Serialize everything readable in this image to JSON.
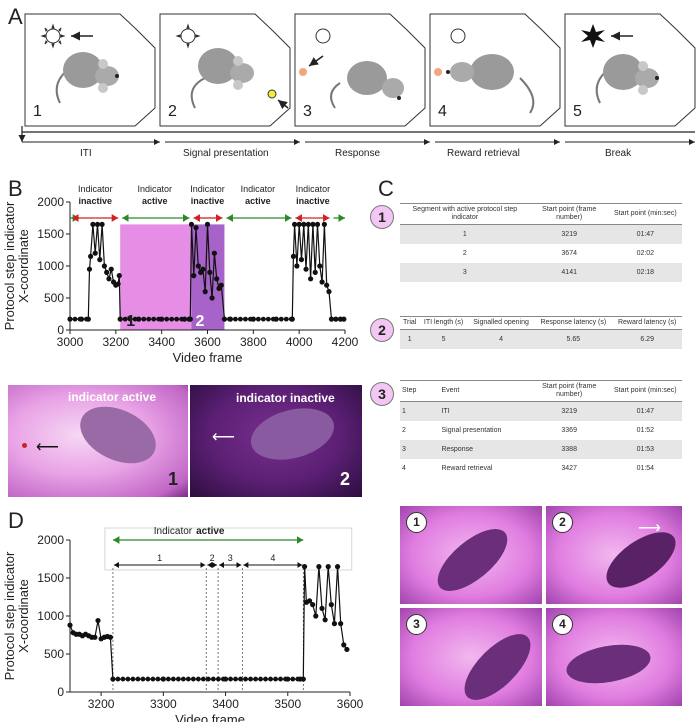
{
  "panels": {
    "A": "A",
    "B": "B",
    "C": "C",
    "D": "D"
  },
  "panel_a": {
    "step_numbers": [
      "1",
      "2",
      "3",
      "4",
      "5"
    ],
    "timeline_labels": [
      "ITI",
      "Signal presentation",
      "Response",
      "Reward retrieval",
      "Break"
    ]
  },
  "panel_b": {
    "indicator_states": [
      {
        "name": "Indicator",
        "state": "inactive"
      },
      {
        "name": "Indicator",
        "state": "active"
      },
      {
        "name": "Indicator",
        "state": "inactive"
      },
      {
        "name": "Indicator",
        "state": "active"
      },
      {
        "name": "Indicator",
        "state": "inactive"
      }
    ],
    "region_labels": [
      "1",
      "2"
    ],
    "photo_left_caption": "indicator active",
    "photo_left_number": "1",
    "photo_right_caption": "indicator inactive",
    "photo_right_number": "2"
  },
  "panel_c": {
    "table1": {
      "badge": "1",
      "headers": [
        "Segment with active protocol step indicator",
        "Start point (frame number)",
        "Start point (min:sec)"
      ],
      "rows": [
        [
          "1",
          "3219",
          "01:47"
        ],
        [
          "2",
          "3674",
          "02:02"
        ],
        [
          "3",
          "4141",
          "02:18"
        ]
      ]
    },
    "table2": {
      "badge": "2",
      "headers": [
        "Trial",
        "ITI length (s)",
        "Signalled opening",
        "Response latency (s)",
        "Reward latency (s)"
      ],
      "rows": [
        [
          "1",
          "5",
          "4",
          "5.65",
          "6.29"
        ]
      ]
    },
    "table3": {
      "badge": "3",
      "headers": [
        "Step",
        "Event",
        "Start point (frame number)",
        "Start point (min:sec)"
      ],
      "rows": [
        [
          "1",
          "ITI",
          "3219",
          "01:47"
        ],
        [
          "2",
          "Signal presentation",
          "3369",
          "01:52"
        ],
        [
          "3",
          "Response",
          "3388",
          "01:53"
        ],
        [
          "4",
          "Reward retrieval",
          "3427",
          "01:54"
        ]
      ]
    },
    "photo_numbers": [
      "1",
      "2",
      "3",
      "4"
    ]
  },
  "panel_d": {
    "indicator_label": "Indicator",
    "indicator_state": "active",
    "segment_labels": [
      "1",
      "2",
      "3",
      "4"
    ]
  },
  "chart_data": [
    {
      "id": "B",
      "type": "line",
      "xlabel": "Video frame",
      "ylabel": "Protocol step indicator X-coordinate",
      "xlim": [
        3000,
        4200
      ],
      "ylim": [
        0,
        2000
      ],
      "xticks": [
        3000,
        3200,
        3400,
        3600,
        3800,
        4000,
        4200
      ],
      "yticks": [
        0,
        500,
        1000,
        1500,
        2000
      ],
      "highlight_regions": [
        {
          "label": "1",
          "x": [
            3219,
            3530
          ],
          "color": "#e68de6"
        },
        {
          "label": "2",
          "x": [
            3530,
            3674
          ],
          "color": "#a763c9"
        }
      ],
      "series": [
        {
          "name": "x-coordinate",
          "x": [
            3000,
            3050,
            3080,
            3085,
            3090,
            3100,
            3110,
            3120,
            3130,
            3140,
            3150,
            3160,
            3170,
            3180,
            3190,
            3200,
            3210,
            3215,
            3219,
            3300,
            3400,
            3500,
            3520,
            3525,
            3530,
            3540,
            3550,
            3560,
            3570,
            3580,
            3590,
            3600,
            3610,
            3620,
            3630,
            3640,
            3650,
            3660,
            3674,
            3700,
            3800,
            3900,
            3970,
            3975,
            3980,
            3990,
            4000,
            4010,
            4020,
            4030,
            4040,
            4050,
            4060,
            4070,
            4080,
            4090,
            4100,
            4110,
            4120,
            4130,
            4141,
            4160,
            4180,
            4195
          ],
          "y": [
            170,
            170,
            170,
            950,
            1150,
            1650,
            1200,
            1650,
            1100,
            1650,
            1000,
            900,
            800,
            950,
            750,
            700,
            720,
            850,
            170,
            170,
            170,
            170,
            170,
            170,
            1650,
            850,
            1600,
            1000,
            900,
            950,
            600,
            1650,
            900,
            500,
            1200,
            800,
            650,
            700,
            170,
            170,
            170,
            170,
            170,
            1150,
            1650,
            1000,
            1650,
            1100,
            1650,
            950,
            1650,
            800,
            1650,
            900,
            1650,
            1000,
            750,
            1650,
            700,
            600,
            170,
            170,
            170,
            170
          ]
        }
      ]
    },
    {
      "id": "D",
      "type": "line",
      "xlabel": "Video frame",
      "ylabel": "Protocol step indicator X-coordinate",
      "xlim": [
        3150,
        3600
      ],
      "ylim": [
        0,
        2000
      ],
      "xticks": [
        3200,
        3300,
        3400,
        3500,
        3600
      ],
      "yticks": [
        0,
        500,
        1000,
        1500,
        2000
      ],
      "step_boundaries": [
        3219,
        3369,
        3388,
        3427,
        3525
      ],
      "series": [
        {
          "name": "x-coordinate",
          "x": [
            3150,
            3155,
            3160,
            3165,
            3170,
            3175,
            3180,
            3185,
            3190,
            3195,
            3200,
            3205,
            3210,
            3215,
            3219,
            3300,
            3400,
            3500,
            3520,
            3525,
            3527,
            3530,
            3535,
            3540,
            3545,
            3550,
            3555,
            3560,
            3565,
            3570,
            3575,
            3580,
            3585,
            3590,
            3595
          ],
          "y": [
            880,
            780,
            760,
            760,
            740,
            760,
            740,
            720,
            720,
            940,
            700,
            720,
            730,
            720,
            170,
            170,
            170,
            170,
            170,
            170,
            1650,
            1180,
            1200,
            1150,
            1000,
            1650,
            1100,
            950,
            1650,
            1150,
            900,
            1650,
            900,
            620,
            560
          ]
        }
      ]
    }
  ]
}
